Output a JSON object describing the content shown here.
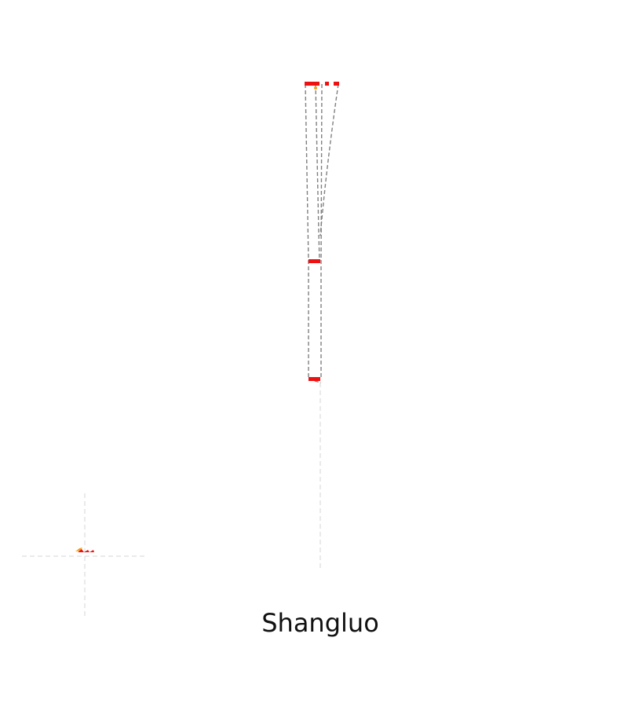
{
  "map": {
    "title": "Shangluo"
  },
  "colors": {
    "boundary": "#808080",
    "highlight": "#ee1111",
    "marker": "#f0a020",
    "guide": "#d4d4d4"
  }
}
